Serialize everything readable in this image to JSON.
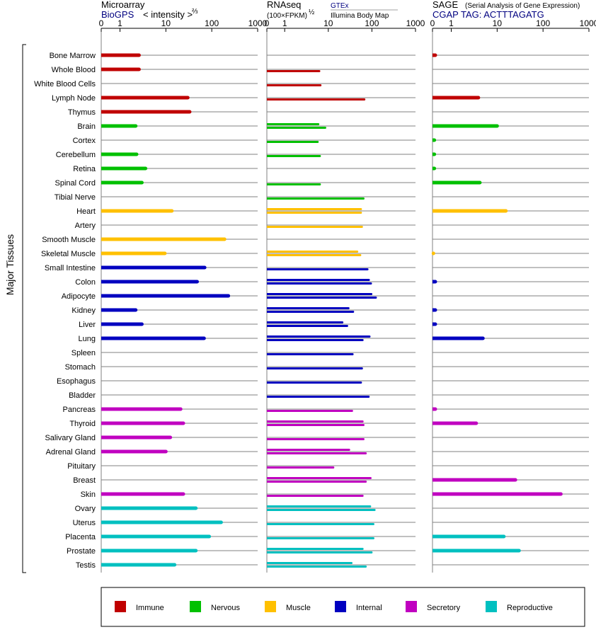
{
  "headers": {
    "microarray": {
      "title": "Microarray",
      "source": "BioGPS",
      "unit": "< intensity >",
      "unit_exp": "⅔"
    },
    "rnaseq": {
      "title": "RNAseq",
      "unit": "(100×FPKM)",
      "unit_exp": "½",
      "source1": "GTEx",
      "source2": "Illumina Body Map"
    },
    "sage": {
      "title": "SAGE",
      "subtitle": "(Serial Analysis of Gene Expression)",
      "tag": "CGAP TAG: ACTTTAGATG"
    }
  },
  "y_group_label": "Major Tissues",
  "ticks": [
    "0",
    "1",
    "10",
    "100",
    "1000"
  ],
  "tick_values": [
    0,
    1,
    10,
    100,
    1000
  ],
  "colors": {
    "Immune": "#c00000",
    "Nervous": "#00c000",
    "Muscle": "#ffc000",
    "Internal": "#0000c0",
    "Secretory": "#c000c0",
    "Reproductive": "#00c0c0",
    "baseline": "#808080",
    "axis": "#000000"
  },
  "legend": [
    {
      "label": "Immune",
      "color": "#c00000"
    },
    {
      "label": "Nervous",
      "color": "#00c000"
    },
    {
      "label": "Muscle",
      "color": "#ffc000"
    },
    {
      "label": "Internal",
      "color": "#0000c0"
    },
    {
      "label": "Secretory",
      "color": "#c000c0"
    },
    {
      "label": "Reproductive",
      "color": "#00c0c0"
    }
  ],
  "chart_data": {
    "type": "bar",
    "orientation": "horizontal",
    "x_scale": "log-like (0, 1, 10, 100, 1000)",
    "categories": [
      "Bone Marrow",
      "Whole Blood",
      "White Blood Cells",
      "Lymph Node",
      "Thymus",
      "Brain",
      "Cortex",
      "Cerebellum",
      "Retina",
      "Spinal Cord",
      "Tibial Nerve",
      "Heart",
      "Artery",
      "Smooth Muscle",
      "Skeletal Muscle",
      "Small Intestine",
      "Colon",
      "Adipocyte",
      "Kidney",
      "Liver",
      "Lung",
      "Spleen",
      "Stomach",
      "Esophagus",
      "Bladder",
      "Pancreas",
      "Thyroid",
      "Salivary Gland",
      "Adrenal Gland",
      "Pituitary",
      "Breast",
      "Skin",
      "Ovary",
      "Uterus",
      "Placenta",
      "Prostate",
      "Testis"
    ],
    "groups": [
      "Immune",
      "Immune",
      "Immune",
      "Immune",
      "Immune",
      "Nervous",
      "Nervous",
      "Nervous",
      "Nervous",
      "Nervous",
      "Nervous",
      "Muscle",
      "Muscle",
      "Muscle",
      "Muscle",
      "Internal",
      "Internal",
      "Internal",
      "Internal",
      "Internal",
      "Internal",
      "Internal",
      "Internal",
      "Internal",
      "Internal",
      "Secretory",
      "Secretory",
      "Secretory",
      "Secretory",
      "Secretory",
      "Secretory",
      "Secretory",
      "Reproductive",
      "Reproductive",
      "Reproductive",
      "Reproductive",
      "Reproductive"
    ],
    "microarray": [
      2.6,
      2.6,
      null,
      30,
      33,
      2.2,
      null,
      2.3,
      3.6,
      3.0,
      null,
      13.5,
      null,
      190,
      9.5,
      70,
      48,
      230,
      2.2,
      3.0,
      68,
      null,
      null,
      null,
      null,
      21,
      24,
      12.5,
      10,
      null,
      null,
      24,
      45,
      160,
      88,
      45,
      15.5
    ],
    "rnaseq_gtex": [
      null,
      6.2,
      6.6,
      67,
      null,
      5.9,
      5.7,
      6.4,
      null,
      6.4,
      64,
      56,
      59,
      null,
      46,
      79,
      85,
      97,
      29,
      21,
      88,
      36,
      59,
      56,
      84,
      35,
      61,
      64,
      30,
      13,
      93,
      61,
      91,
      108,
      108,
      61,
      34
    ],
    "rnaseq_ibm": [
      null,
      null,
      null,
      null,
      null,
      8.5,
      null,
      null,
      null,
      null,
      null,
      56,
      null,
      null,
      54,
      null,
      95,
      123,
      37,
      27,
      61,
      null,
      null,
      null,
      null,
      null,
      64,
      null,
      72,
      null,
      72,
      null,
      115,
      null,
      null,
      98,
      72
    ],
    "sage": [
      0.15,
      null,
      null,
      3.9,
      null,
      10,
      0.1,
      0.1,
      0.1,
      4.2,
      null,
      15.5,
      null,
      null,
      0.05,
      null,
      0.15,
      null,
      0.15,
      0.15,
      4.9,
      null,
      null,
      null,
      null,
      0.15,
      3.5,
      null,
      null,
      null,
      25,
      245,
      null,
      null,
      14,
      30,
      null
    ],
    "panels": [
      "Microarray",
      "RNAseq",
      "SAGE"
    ],
    "xlim": [
      0,
      1000
    ],
    "legend_position": "bottom"
  }
}
